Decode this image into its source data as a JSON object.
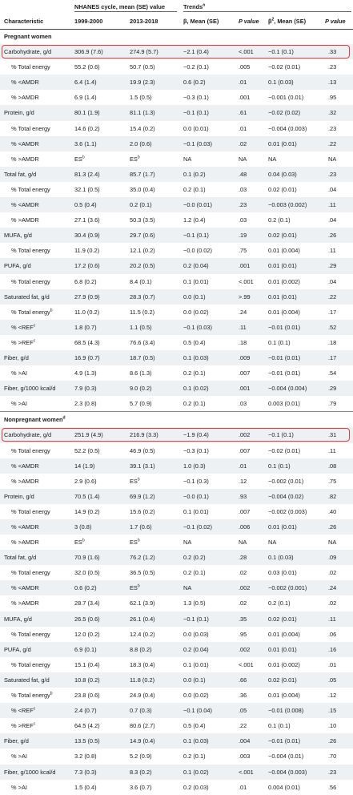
{
  "header": {
    "col_characteristic": "Characteristic",
    "group_cycle": "NHANES cycle, mean (SE) value",
    "col_1999": "1999-2000",
    "col_2013": "2013-2018",
    "group_trends": "Trends",
    "group_trends_sup": "a",
    "col_beta": "β, Mean (SE)",
    "col_p1": "P value",
    "col_beta2": "β",
    "col_beta2_sup": "2",
    "col_beta2_rest": ", Mean (SE)",
    "col_p2": "P value"
  },
  "rows": [
    {
      "type": "section",
      "label": "Pregnant women"
    },
    {
      "label": "Carbohydrate, g/d",
      "v1": "306.9 (7.6)",
      "v2": "274.9 (5.7)",
      "b": "−2.1 (0.4)",
      "p1": "<.001",
      "b2": "−0.1 (0.1)",
      "p2": ".33",
      "highlight": true
    },
    {
      "label": "% Total energy",
      "indent": true,
      "v1": "55.2 (0.6)",
      "v2": "50.7 (0.5)",
      "b": "−0.2 (0.1)",
      "p1": ".005",
      "b2": "−0.02 (0.01)",
      "p2": ".23"
    },
    {
      "label": "% <AMDR",
      "indent": true,
      "v1": "6.4 (1.4)",
      "v2": "19.9 (2.3)",
      "b": "0.6 (0.2)",
      "p1": ".01",
      "b2": "0.1 (0.03)",
      "p2": ".13"
    },
    {
      "label": "% >AMDR",
      "indent": true,
      "v1": "6.9 (1.4)",
      "v2": "1.5 (0.5)",
      "b": "−0.3 (0.1)",
      "p1": ".001",
      "b2": "−0.001 (0.01)",
      "p2": ".95"
    },
    {
      "label": "Protein, g/d",
      "v1": "80.1 (1.9)",
      "v2": "81.1 (1.3)",
      "b": "−0.1 (0.1)",
      "p1": ".61",
      "b2": "−0.02 (0.02)",
      "p2": ".32"
    },
    {
      "label": "% Total energy",
      "indent": true,
      "v1": "14.6 (0.2)",
      "v2": "15.4 (0.2)",
      "b": "0.0 (0.01)",
      "p1": ".01",
      "b2": "−0.004 (0.003)",
      "p2": ".23"
    },
    {
      "label": "% <AMDR",
      "indent": true,
      "v1": "3.6 (1.1)",
      "v2": "2.0 (0.6)",
      "b": "−0.1 (0.03)",
      "p1": ".02",
      "b2": "0.01 (0.01)",
      "p2": ".22"
    },
    {
      "label": "% >AMDR",
      "indent": true,
      "v1": "ES",
      "v1s": "b",
      "v2": "ES",
      "v2s": "b",
      "b": "NA",
      "p1": "NA",
      "b2": "NA",
      "p2": "NA"
    },
    {
      "label": "Total fat, g/d",
      "v1": "81.3 (2.4)",
      "v2": "85.7 (1.7)",
      "b": "0.1 (0.2)",
      "p1": ".48",
      "b2": "0.04 (0.03)",
      "p2": ".23"
    },
    {
      "label": "% Total energy",
      "indent": true,
      "v1": "32.1 (0.5)",
      "v2": "35.0 (0.4)",
      "b": "0.2 (0.1)",
      "p1": ".03",
      "b2": "0.02 (0.01)",
      "p2": ".04"
    },
    {
      "label": "% <AMDR",
      "indent": true,
      "v1": "0.5 (0.4)",
      "v2": "0.2 (0.1)",
      "b": "−0.0 (0.01)",
      "p1": ".23",
      "b2": "−0.003 (0.002)",
      "p2": ".11"
    },
    {
      "label": "% >AMDR",
      "indent": true,
      "v1": "27.1 (3.6)",
      "v2": "50.3 (3.5)",
      "b": "1.2 (0.4)",
      "p1": ".03",
      "b2": "0.2 (0.1)",
      "p2": ".04"
    },
    {
      "label": "MUFA, g/d",
      "v1": "30.4 (0.9)",
      "v2": "29.7 (0.6)",
      "b": "−0.1 (0.1)",
      "p1": ".19",
      "b2": "0.02 (0.01)",
      "p2": ".26"
    },
    {
      "label": "% Total energy",
      "indent": true,
      "v1": "11.9 (0.2)",
      "v2": "12.1 (0.2)",
      "b": "−0.0 (0.02)",
      "p1": ".75",
      "b2": "0.01 (0.004)",
      "p2": ".11"
    },
    {
      "label": "PUFA, g/d",
      "v1": "17.2 (0.6)",
      "v2": "20.2 (0.5)",
      "b": "0.2 (0.04)",
      "p1": ".001",
      "b2": "0.01 (0.01)",
      "p2": ".29"
    },
    {
      "label": "% Total energy",
      "indent": true,
      "v1": "6.8 (0.2)",
      "v2": "8.4 (0.1)",
      "b": "0.1 (0.01)",
      "p1": "<.001",
      "b2": "0.01 (0.002)",
      "p2": ".04"
    },
    {
      "label": "Saturated fat, g/d",
      "v1": "27.9 (0.9)",
      "v2": "28.3 (0.7)",
      "b": "0.0 (0.1)",
      "p1": ">.99",
      "b2": "0.01 (0.01)",
      "p2": ".22"
    },
    {
      "label": "% Total energy",
      "labels": "b",
      "indent": true,
      "v1": "11.0 (0.2)",
      "v2": "11.5 (0.2)",
      "b": "0.0 (0.02)",
      "p1": ".24",
      "b2": "0.01 (0.004)",
      "p2": ".17"
    },
    {
      "label": "% <REF",
      "labels": "c",
      "indent": true,
      "v1": "1.8 (0.7)",
      "v2": "1.1 (0.5)",
      "b": "−0.1 (0.03)",
      "p1": ".11",
      "b2": "−0.01 (0.01)",
      "p2": ".52"
    },
    {
      "label": "% >REF",
      "labels": "c",
      "indent": true,
      "v1": "68.5 (4.3)",
      "v2": "76.6 (3.4)",
      "b": "0.5 (0.4)",
      "p1": ".18",
      "b2": "0.1 (0.1)",
      "p2": ".18"
    },
    {
      "label": "Fiber, g/d",
      "v1": "16.9 (0.7)",
      "v2": "18.7 (0.5)",
      "b": "0.1 (0.03)",
      "p1": ".009",
      "b2": "−0.01 (0.01)",
      "p2": ".17"
    },
    {
      "label": "% >AI",
      "indent": true,
      "v1": "4.9 (1.3)",
      "v2": "8.6 (1.3)",
      "b": "0.2 (0.1)",
      "p1": ".007",
      "b2": "−0.01 (0.01)",
      "p2": ".54"
    },
    {
      "label": "Fiber, g/1000 kcal/d",
      "v1": "7.9 (0.3)",
      "v2": "9.0 (0.2)",
      "b": "0.1 (0.02)",
      "p1": ".001",
      "b2": "−0.004 (0.004)",
      "p2": ".29"
    },
    {
      "label": "% >AI",
      "indent": true,
      "v1": "2.3 (0.8)",
      "v2": "5.7 (0.9)",
      "b": "0.2 (0.1)",
      "p1": ".03",
      "b2": "0.003 (0.01)",
      "p2": ".79"
    },
    {
      "type": "section",
      "label": "Nonpregnant women",
      "labels": "d",
      "sep": true
    },
    {
      "label": "Carbohydrate, g/d",
      "v1": "251.9 (4.9)",
      "v2": "216.9 (3.3)",
      "b": "−1.9 (0.4)",
      "p1": ".002",
      "b2": "−0.1 (0.1)",
      "p2": ".31",
      "highlight": true
    },
    {
      "label": "% Total energy",
      "indent": true,
      "v1": "52.2 (0.5)",
      "v2": "46.9 (0.5)",
      "b": "−0.3 (0.1)",
      "p1": ".007",
      "b2": "−0.02 (0.01)",
      "p2": ".11"
    },
    {
      "label": "% <AMDR",
      "indent": true,
      "v1": "14 (1.9)",
      "v2": "39.1 (3.1)",
      "b": "1.0 (0.3)",
      "p1": ".01",
      "b2": "0.1 (0.1)",
      "p2": ".08"
    },
    {
      "label": "% >AMDR",
      "indent": true,
      "v1": "2.9 (0.6)",
      "v2": "ES",
      "v2s": "b",
      "b": "−0.1 (0.3)",
      "p1": ".12",
      "b2": "−0.002 (0.01)",
      "p2": ".75"
    },
    {
      "label": "Protein, g/d",
      "v1": "70.5 (1.4)",
      "v2": "69.9 (1.2)",
      "b": "−0.0 (0.1)",
      "p1": ".93",
      "b2": "−0.004 (0.02)",
      "p2": ".82"
    },
    {
      "label": "% Total energy",
      "indent": true,
      "v1": "14.9 (0.2)",
      "v2": "15.6 (0.2)",
      "b": "0.1 (0.01)",
      "p1": ".007",
      "b2": "−0.002 (0.003)",
      "p2": ".40"
    },
    {
      "label": "% <AMDR",
      "indent": true,
      "v1": "3 (0.8)",
      "v2": "1.7 (0.6)",
      "b": "−0.1 (0.02)",
      "p1": ".006",
      "b2": "0.01 (0.01)",
      "p2": ".26"
    },
    {
      "label": "% >AMDR",
      "indent": true,
      "v1": "ES",
      "v1s": "b",
      "v2": "ES",
      "v2s": "b",
      "b": "NA",
      "p1": "NA",
      "b2": "NA",
      "p2": "NA"
    },
    {
      "label": "Total fat, g/d",
      "v1": "70.9 (1.6)",
      "v2": "76.2 (1.2)",
      "b": "0.2 (0.2)",
      "p1": ".28",
      "b2": "0.1 (0.03)",
      "p2": ".09"
    },
    {
      "label": "% Total energy",
      "indent": true,
      "v1": "32.0 (0.5)",
      "v2": "36.5 (0.5)",
      "b": "0.2 (0.1)",
      "p1": ".02",
      "b2": "0.03 (0.01)",
      "p2": ".02"
    },
    {
      "label": "% <AMDR",
      "indent": true,
      "v1": "0.6 (0.2)",
      "v2": "ES",
      "v2s": "b",
      "b": "NA",
      "p1": ".002",
      "b2": "−0.002 (0.001)",
      "p2": ".24"
    },
    {
      "label": "% >AMDR",
      "indent": true,
      "v1": "28.7 (3.4)",
      "v2": "62.1 (3.9)",
      "b": "1.3 (0.5)",
      "p1": ".02",
      "b2": "0.2 (0.1)",
      "p2": ".02"
    },
    {
      "label": "MUFA, g/d",
      "v1": "26.5 (0.6)",
      "v2": "26.1 (0.4)",
      "b": "−0.1 (0.1)",
      "p1": ".35",
      "b2": "0.02 (0.01)",
      "p2": ".11"
    },
    {
      "label": "% Total energy",
      "indent": true,
      "v1": "12.0 (0.2)",
      "v2": "12.4 (0.2)",
      "b": "0.0 (0.03)",
      "p1": ".95",
      "b2": "0.01 (0.004)",
      "p2": ".06"
    },
    {
      "label": "PUFA, g/d",
      "v1": "6.9 (0.1)",
      "v2": "8.8 (0.2)",
      "b": "0.2 (0.04)",
      "p1": ".002",
      "b2": "0.01 (0.01)",
      "p2": ".16"
    },
    {
      "label": "% Total energy",
      "indent": true,
      "v1": "15.1 (0.4)",
      "v2": "18.3 (0.4)",
      "b": "0.1 (0.01)",
      "p1": "<.001",
      "b2": "0.01 (0.002)",
      "p2": ".01"
    },
    {
      "label": "Saturated fat, g/d",
      "v1": "10.8 (0.2)",
      "v2": "11.8 (0.2)",
      "b": "0.0 (0.1)",
      "p1": ".66",
      "b2": "0.02 (0.01)",
      "p2": ".05"
    },
    {
      "label": "% Total energy",
      "labels": "b",
      "indent": true,
      "v1": "23.8 (0.6)",
      "v2": "24.9 (0.4)",
      "b": "0.0 (0.02)",
      "p1": ".36",
      "b2": "0.01 (0.004)",
      "p2": ".12"
    },
    {
      "label": "% <REF",
      "labels": "c",
      "indent": true,
      "v1": "2.4 (0.7)",
      "v2": "0.7 (0.3)",
      "b": "−0.1 (0.04)",
      "p1": ".05",
      "b2": "−0.01 (0.008)",
      "p2": ".15"
    },
    {
      "label": "% >REF",
      "labels": "c",
      "indent": true,
      "v1": "64.5 (4.2)",
      "v2": "80.6 (2.7)",
      "b": "0.5 (0.4)",
      "p1": ".22",
      "b2": "0.1 (0.1)",
      "p2": ".10"
    },
    {
      "label": "Fiber, g/d",
      "v1": "13.5 (0.5)",
      "v2": "14.9 (0.4)",
      "b": "0.1 (0.03)",
      "p1": ".004",
      "b2": "−0.01 (0.01)",
      "p2": ".26"
    },
    {
      "label": "% >AI",
      "indent": true,
      "v1": "3.2 (0.8)",
      "v2": "5.2 (0.9)",
      "b": "0.2 (0.1)",
      "p1": ".003",
      "b2": "−0.004 (0.01)",
      "p2": ".70"
    },
    {
      "label": "Fiber, g/1000 kcal/d",
      "v1": "7.3 (0.3)",
      "v2": "8.3 (0.2)",
      "b": "0.1 (0.02)",
      "p1": "<.001",
      "b2": "−0.004 (0.003)",
      "p2": ".23"
    },
    {
      "label": "% >AI",
      "indent": true,
      "v1": "1.5 (0.4)",
      "v2": "3.6 (0.7)",
      "b": "0.2 (0.03)",
      "p1": ".01",
      "b2": "0.004 (0.01)",
      "p2": ".56"
    }
  ]
}
